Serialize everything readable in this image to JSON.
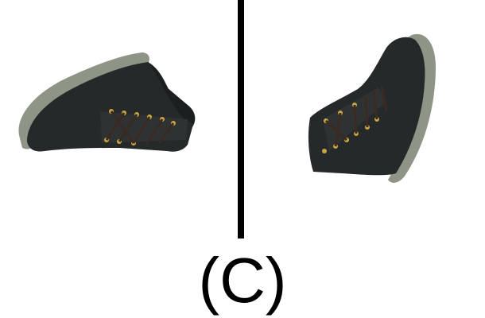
{
  "caption": "(C)",
  "colors": {
    "background": "#ffffff",
    "divider": "#000000",
    "shoe_upper": "#26292a",
    "shoe_sole": "#8e9486",
    "laces": "#3a2a22",
    "eyelets": "#c9a640"
  },
  "panels": [
    {
      "id": "left",
      "content": "dark-boot-image"
    },
    {
      "id": "right",
      "content": "dark-boot-image"
    }
  ]
}
